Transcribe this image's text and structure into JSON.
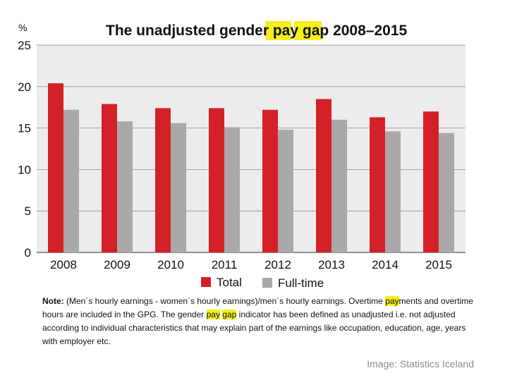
{
  "chart_data": {
    "type": "bar",
    "title_parts": [
      "The unadjusted gender ",
      "pay",
      " ",
      "gap",
      " 2008–2015"
    ],
    "unit": "%",
    "categories": [
      "2008",
      "2009",
      "2010",
      "2011",
      "2012",
      "2013",
      "2014",
      "2015"
    ],
    "series": [
      {
        "name": "Total",
        "color": "#d42127",
        "values": [
          20.4,
          17.9,
          17.4,
          17.4,
          17.2,
          18.5,
          16.3,
          17.0
        ]
      },
      {
        "name": "Full-time",
        "color": "#a9a9a9",
        "values": [
          17.2,
          15.8,
          15.6,
          15.1,
          14.8,
          16.0,
          14.6,
          14.4
        ]
      }
    ],
    "y_ticks": [
      "0",
      "5",
      "10",
      "15",
      "20",
      "25"
    ],
    "ylim": [
      0,
      25
    ],
    "grid": true,
    "legend_position": "bottom-center",
    "plot_background": "#ececec"
  },
  "note": {
    "label": "Note:",
    "t1": " (Men´s hourly earnings - women´s hourly earnings)/men´s hourly earnings. Overtime ",
    "hl1": "pay",
    "t2": "ments and overtime hours are included in the GPG. The gender ",
    "hl2": "pay",
    "t3": " ",
    "hl3": "gap",
    "t4": " indicator has been defined as unadjusted i.e. not adjusted according to individual characteristics that may explain part of the earnings like occupation, education, age, years with employer etc."
  },
  "credit": "Image: Statistics Iceland"
}
